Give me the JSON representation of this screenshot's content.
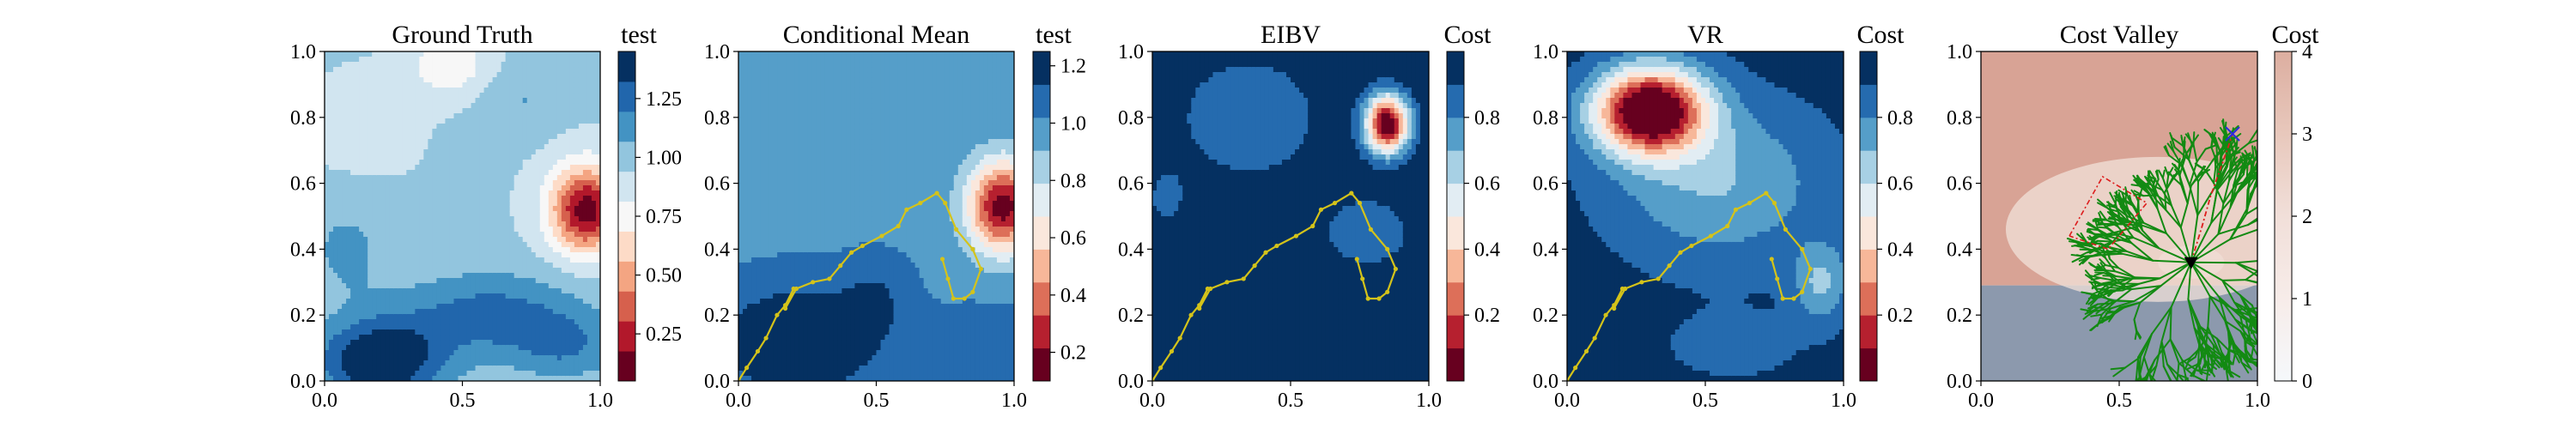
{
  "figure": {
    "panel_count": 5
  },
  "chart_data": [
    {
      "type": "heatmap",
      "title": "Ground Truth",
      "xlabel": "",
      "ylabel": "",
      "xlim": [
        0,
        1
      ],
      "ylim": [
        0,
        1
      ],
      "x_ticks": [
        "0.0",
        "0.5",
        "1.0"
      ],
      "y_ticks": [
        "0.0",
        "0.2",
        "0.4",
        "0.6",
        "0.8",
        "1.0"
      ],
      "colorbar": {
        "label": "test",
        "range": [
          0.05,
          1.45
        ],
        "ticks": [
          0.25,
          0.5,
          0.75,
          1.0,
          1.25
        ],
        "tick_labels": [
          "0.25",
          "0.50",
          "0.75",
          "1.00",
          "1.25"
        ],
        "colormap": "RdBu",
        "levels": 11
      },
      "field": {
        "base": 0.95,
        "components": [
          {
            "cx": 0.95,
            "cy": 0.52,
            "sx": 0.13,
            "sy": 0.13,
            "amp": -0.85
          },
          {
            "cx": 0.45,
            "cy": 0.96,
            "sx": 0.14,
            "sy": 0.09,
            "amp": -0.25
          },
          {
            "cx": 0.2,
            "cy": 0.06,
            "sx": 0.22,
            "sy": 0.12,
            "amp": 0.55
          },
          {
            "cx": 0.6,
            "cy": 0.2,
            "sx": 0.35,
            "sy": 0.13,
            "amp": 0.3
          },
          {
            "cx": 0.88,
            "cy": 0.1,
            "sx": 0.2,
            "sy": 0.1,
            "amp": 0.2
          },
          {
            "cx": 0.08,
            "cy": 0.4,
            "sx": 0.15,
            "sy": 0.15,
            "amp": 0.15
          },
          {
            "cx": 0.15,
            "cy": 0.78,
            "sx": 0.15,
            "sy": 0.12,
            "amp": -0.12
          },
          {
            "cx": 0.72,
            "cy": 0.85,
            "sx": 0.14,
            "sy": 0.1,
            "amp": 0.12
          }
        ]
      }
    },
    {
      "type": "heatmap",
      "title": "Conditional Mean",
      "xlabel": "",
      "ylabel": "",
      "xlim": [
        0,
        1
      ],
      "ylim": [
        0,
        1
      ],
      "x_ticks": [
        "0.0",
        "0.5",
        "1.0"
      ],
      "y_ticks": [
        "0.0",
        "0.2",
        "0.4",
        "0.6",
        "0.8",
        "1.0"
      ],
      "colorbar": {
        "label": "test",
        "range": [
          0.1,
          1.25
        ],
        "ticks": [
          0.2,
          0.4,
          0.6,
          0.8,
          1.0,
          1.2
        ],
        "tick_labels": [
          "0.2",
          "0.4",
          "0.6",
          "0.8",
          "1.0",
          "1.2"
        ],
        "colormap": "RdBu",
        "levels": 10
      },
      "field": {
        "base": 1.0,
        "components": [
          {
            "cx": 0.96,
            "cy": 0.53,
            "sx": 0.13,
            "sy": 0.14,
            "amp": -0.85
          },
          {
            "cx": 0.22,
            "cy": 0.12,
            "sx": 0.28,
            "sy": 0.16,
            "amp": 0.32
          },
          {
            "cx": 0.5,
            "cy": 0.25,
            "sx": 0.12,
            "sy": 0.12,
            "amp": 0.12
          },
          {
            "cx": 0.9,
            "cy": 0.12,
            "sx": 0.18,
            "sy": 0.1,
            "amp": 0.12
          }
        ]
      },
      "path": [
        [
          0.0,
          0.0
        ],
        [
          0.03,
          0.04
        ],
        [
          0.07,
          0.09
        ],
        [
          0.1,
          0.13
        ],
        [
          0.14,
          0.2
        ],
        [
          0.17,
          0.23
        ],
        [
          0.2,
          0.28
        ],
        [
          0.17,
          0.22
        ],
        [
          0.21,
          0.28
        ],
        [
          0.27,
          0.3
        ],
        [
          0.33,
          0.31
        ],
        [
          0.37,
          0.35
        ],
        [
          0.41,
          0.39
        ],
        [
          0.45,
          0.41
        ],
        [
          0.52,
          0.44
        ],
        [
          0.58,
          0.47
        ],
        [
          0.61,
          0.52
        ],
        [
          0.66,
          0.54
        ],
        [
          0.72,
          0.57
        ],
        [
          0.75,
          0.54
        ],
        [
          0.79,
          0.46
        ],
        [
          0.85,
          0.4
        ],
        [
          0.88,
          0.34
        ],
        [
          0.85,
          0.27
        ],
        [
          0.82,
          0.25
        ],
        [
          0.78,
          0.25
        ],
        [
          0.76,
          0.31
        ],
        [
          0.74,
          0.37
        ]
      ]
    },
    {
      "type": "heatmap",
      "title": "EIBV",
      "xlabel": "",
      "ylabel": "",
      "xlim": [
        0,
        1
      ],
      "ylim": [
        0,
        1
      ],
      "x_ticks": [
        "0.0",
        "0.5",
        "1.0"
      ],
      "y_ticks": [
        "0.0",
        "0.2",
        "0.4",
        "0.6",
        "0.8",
        "1.0"
      ],
      "colorbar": {
        "label": "Cost",
        "range": [
          0.0,
          1.0
        ],
        "ticks": [
          0.2,
          0.4,
          0.6,
          0.8
        ],
        "tick_labels": [
          "0.2",
          "0.4",
          "0.6",
          "0.8"
        ],
        "colormap": "RdBu",
        "levels": 10
      },
      "field": {
        "base": 1.0,
        "components": [
          {
            "cx": 0.85,
            "cy": 0.78,
            "sx": 0.08,
            "sy": 0.09,
            "amp": -1.0
          },
          {
            "cx": 0.35,
            "cy": 0.8,
            "sx": 0.3,
            "sy": 0.22,
            "amp": -0.17
          },
          {
            "cx": 0.78,
            "cy": 0.45,
            "sx": 0.18,
            "sy": 0.12,
            "amp": -0.17
          },
          {
            "cx": 0.05,
            "cy": 0.55,
            "sx": 0.08,
            "sy": 0.1,
            "amp": -0.12
          }
        ]
      },
      "path": [
        [
          0.0,
          0.0
        ],
        [
          0.03,
          0.04
        ],
        [
          0.07,
          0.09
        ],
        [
          0.1,
          0.13
        ],
        [
          0.14,
          0.2
        ],
        [
          0.17,
          0.23
        ],
        [
          0.2,
          0.28
        ],
        [
          0.17,
          0.22
        ],
        [
          0.21,
          0.28
        ],
        [
          0.27,
          0.3
        ],
        [
          0.33,
          0.31
        ],
        [
          0.37,
          0.35
        ],
        [
          0.41,
          0.39
        ],
        [
          0.45,
          0.41
        ],
        [
          0.52,
          0.44
        ],
        [
          0.58,
          0.47
        ],
        [
          0.61,
          0.52
        ],
        [
          0.66,
          0.54
        ],
        [
          0.72,
          0.57
        ],
        [
          0.75,
          0.54
        ],
        [
          0.79,
          0.46
        ],
        [
          0.85,
          0.4
        ],
        [
          0.88,
          0.34
        ],
        [
          0.85,
          0.27
        ],
        [
          0.82,
          0.25
        ],
        [
          0.78,
          0.25
        ],
        [
          0.76,
          0.31
        ],
        [
          0.74,
          0.37
        ]
      ]
    },
    {
      "type": "heatmap",
      "title": "VR",
      "xlabel": "",
      "ylabel": "",
      "xlim": [
        0,
        1
      ],
      "ylim": [
        0,
        1
      ],
      "x_ticks": [
        "0.0",
        "0.5",
        "1.0"
      ],
      "y_ticks": [
        "0.0",
        "0.2",
        "0.4",
        "0.6",
        "0.8",
        "1.0"
      ],
      "colorbar": {
        "label": "Cost",
        "range": [
          0.0,
          1.0
        ],
        "ticks": [
          0.2,
          0.4,
          0.6,
          0.8
        ],
        "tick_labels": [
          "0.2",
          "0.4",
          "0.6",
          "0.8"
        ],
        "colormap": "RdBu",
        "levels": 10
      },
      "field": {
        "base": 0.95,
        "components": [
          {
            "cx": 0.3,
            "cy": 0.82,
            "sx": 0.2,
            "sy": 0.13,
            "amp": -1.05
          },
          {
            "cx": 0.55,
            "cy": 0.6,
            "sx": 0.4,
            "sy": 0.25,
            "amp": -0.25
          },
          {
            "cx": 0.92,
            "cy": 0.3,
            "sx": 0.1,
            "sy": 0.12,
            "amp": -0.25
          },
          {
            "cx": 0.6,
            "cy": 0.1,
            "sx": 0.3,
            "sy": 0.12,
            "amp": -0.08
          }
        ]
      },
      "path": [
        [
          0.0,
          0.0
        ],
        [
          0.03,
          0.04
        ],
        [
          0.07,
          0.09
        ],
        [
          0.1,
          0.13
        ],
        [
          0.14,
          0.2
        ],
        [
          0.17,
          0.23
        ],
        [
          0.2,
          0.28
        ],
        [
          0.17,
          0.22
        ],
        [
          0.21,
          0.28
        ],
        [
          0.27,
          0.3
        ],
        [
          0.33,
          0.31
        ],
        [
          0.37,
          0.35
        ],
        [
          0.41,
          0.39
        ],
        [
          0.45,
          0.41
        ],
        [
          0.52,
          0.44
        ],
        [
          0.58,
          0.47
        ],
        [
          0.61,
          0.52
        ],
        [
          0.66,
          0.54
        ],
        [
          0.72,
          0.57
        ],
        [
          0.75,
          0.54
        ],
        [
          0.79,
          0.46
        ],
        [
          0.85,
          0.4
        ],
        [
          0.88,
          0.34
        ],
        [
          0.85,
          0.27
        ],
        [
          0.82,
          0.25
        ],
        [
          0.78,
          0.25
        ],
        [
          0.76,
          0.31
        ],
        [
          0.74,
          0.37
        ]
      ]
    },
    {
      "type": "heatmap",
      "title": "Cost Valley",
      "xlabel": "",
      "ylabel": "",
      "xlim": [
        0,
        1
      ],
      "ylim": [
        0,
        1
      ],
      "x_ticks": [
        "0.0",
        "0.5",
        "1.0"
      ],
      "y_ticks": [
        "0.0",
        "0.2",
        "0.4",
        "0.6",
        "0.8",
        "1.0"
      ],
      "colorbar": {
        "label": "Cost",
        "range": [
          0,
          4
        ],
        "ticks": [
          0,
          1,
          2,
          3,
          4
        ],
        "tick_labels": [
          "0",
          "1",
          "2",
          "3",
          "4"
        ],
        "colormap": "Reds",
        "gradient": [
          "#f5f8fb",
          "#f7ece9",
          "#f1dfd9",
          "#e8c8bc",
          "#dcaea0"
        ]
      },
      "regions": {
        "upper_value": 2.6,
        "lower_value": 0.9,
        "boundary_y": 0.29,
        "upper_color": "#d8a395",
        "lower_color": "#8c99ad",
        "mid_color": "#f2e1d9"
      },
      "tree_root": [
        0.76,
        0.36
      ],
      "tree_color": "#138a13",
      "current_location": [
        0.76,
        0.36
      ],
      "target": [
        0.91,
        0.75
      ],
      "planned_path": [
        [
          0.76,
          0.36
        ],
        [
          0.8,
          0.47
        ],
        [
          0.83,
          0.56
        ],
        [
          0.86,
          0.63
        ],
        [
          0.89,
          0.7
        ],
        [
          0.91,
          0.75
        ]
      ],
      "polygon_dashed": [
        [
          0.32,
          0.44
        ],
        [
          0.44,
          0.62
        ],
        [
          0.6,
          0.54
        ],
        [
          0.46,
          0.4
        ],
        [
          0.32,
          0.44
        ]
      ],
      "polygon_color": "#dd1c1c",
      "target_color": "#2a2add"
    }
  ]
}
